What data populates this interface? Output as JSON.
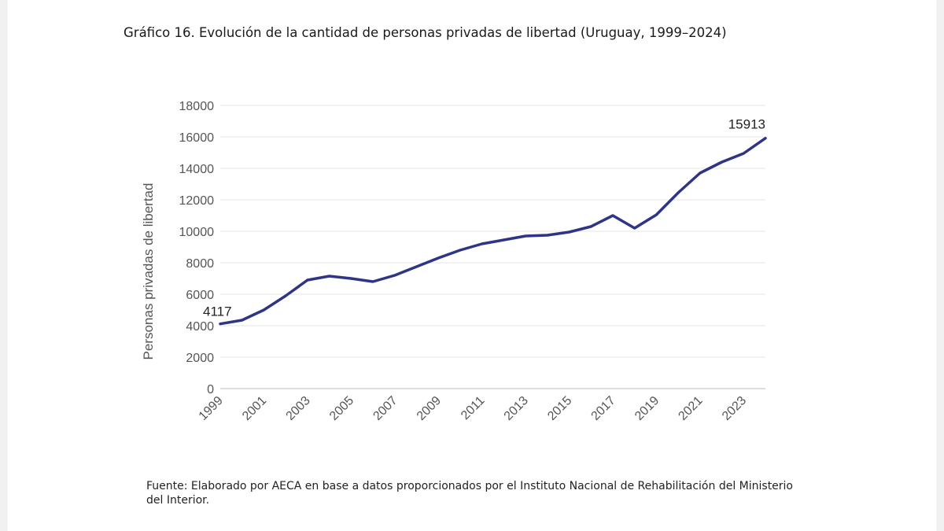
{
  "page": {
    "title": "Gráfico 16. Evolución de la cantidad de personas privadas de libertad (Uruguay, 1999–2024)",
    "source_line1": "Fuente: Elaborado por AECA en base a datos proporcionados por el Instituto Nacional de Rehabilitación del Ministerio",
    "source_line2": "del Interior."
  },
  "chart_data": {
    "type": "line",
    "title": "Gráfico 16. Evolución de la cantidad de personas privadas de libertad (Uruguay, 1999–2024)",
    "xlabel": "",
    "ylabel": "Personas privadas de libertad",
    "x": [
      1999,
      2000,
      2001,
      2002,
      2003,
      2004,
      2005,
      2006,
      2007,
      2008,
      2009,
      2010,
      2011,
      2012,
      2013,
      2014,
      2015,
      2016,
      2017,
      2018,
      2019,
      2020,
      2021,
      2022,
      2023,
      2024
    ],
    "series": [
      {
        "values": [
          4117,
          4350,
          5000,
          5900,
          6900,
          7150,
          7000,
          6800,
          7200,
          7750,
          8300,
          8800,
          9200,
          9450,
          9700,
          9750,
          9950,
          10300,
          11000,
          10200,
          11050,
          12450,
          13700,
          14400,
          14950,
          15913
        ],
        "color": "#2e3587"
      }
    ],
    "ylim": [
      0,
      18000
    ],
    "yticks": [
      "0",
      "2000",
      "4000",
      "6000",
      "8000",
      "10000",
      "12000",
      "14000",
      "16000",
      "18000"
    ],
    "xticks": [
      "1999",
      "2001",
      "2003",
      "2005",
      "2007",
      "2009",
      "2011",
      "2013",
      "2015",
      "2017",
      "2019",
      "2021",
      "2023"
    ],
    "data_labels": [
      {
        "year": 1999,
        "text": "4117"
      },
      {
        "year": 2024,
        "text": "15913"
      }
    ],
    "grid": true,
    "legend": "none"
  }
}
